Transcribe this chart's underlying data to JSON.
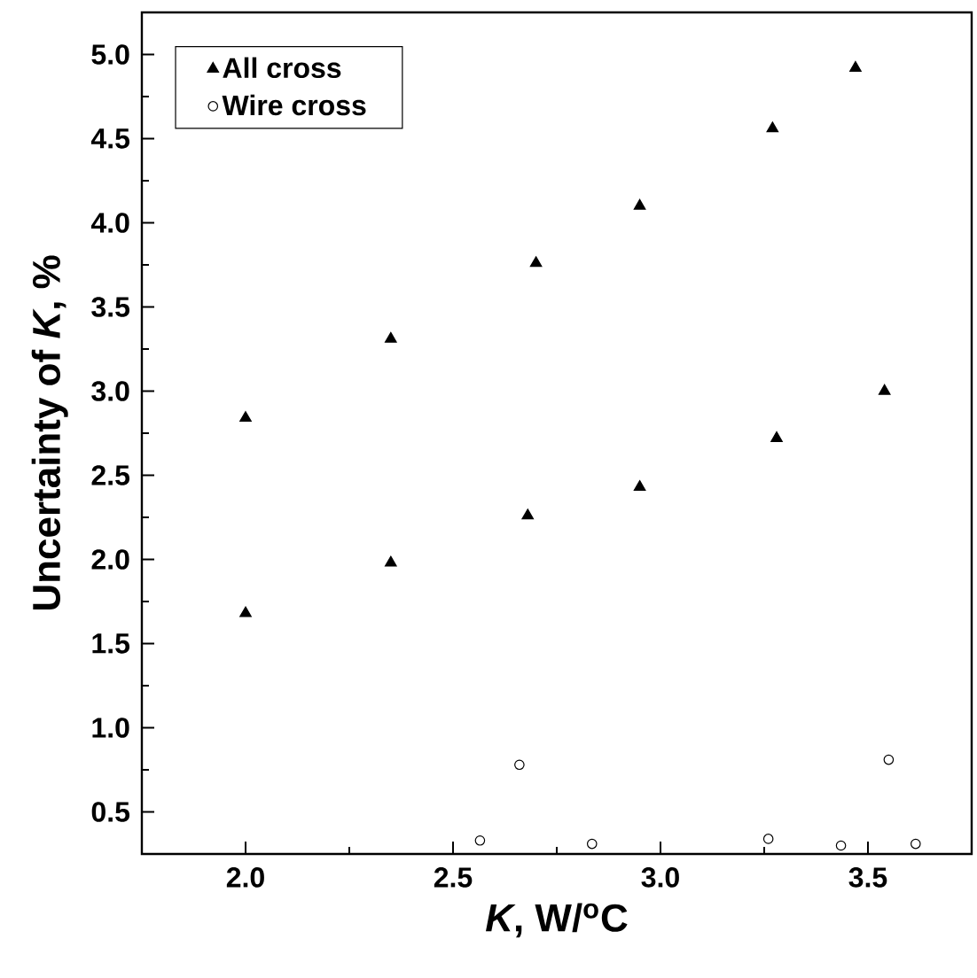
{
  "chart_data": {
    "type": "scatter",
    "xlabel": "*K*, W/$^{o}$C",
    "ylabel": "Uncertainty of *K*, %",
    "series": [
      {
        "name": "All cross",
        "color": "#000000",
        "marker": "triangle",
        "x": [
          2.0,
          2.35,
          2.7,
          2.95,
          3.27,
          3.47,
          3.54,
          3.28,
          2.95,
          2.0,
          2.35,
          2.68
        ],
        "values": [
          2.84,
          3.31,
          3.76,
          4.1,
          4.56,
          4.92,
          3.0,
          2.72,
          2.43,
          1.68,
          1.98,
          2.26
        ]
      },
      {
        "name": "Wire cross",
        "color": "#000000",
        "marker": "circle",
        "x": [
          2.565,
          2.66,
          2.835,
          3.26,
          3.435,
          3.55,
          3.615
        ],
        "values": [
          0.33,
          0.78,
          0.31,
          0.34,
          0.3,
          0.81,
          0.31
        ]
      }
    ],
    "xlim": [
      1.75,
      3.75
    ],
    "ylim": [
      0.25,
      5.25
    ],
    "xticks": [
      {
        "value": 2,
        "label": "2.0"
      },
      {
        "value": 2.25,
        "label": null
      },
      {
        "value": 2.5,
        "label": "2.5"
      },
      {
        "value": 2.75,
        "label": null
      },
      {
        "value": 3,
        "label": "3.0"
      },
      {
        "value": 3.25,
        "label": null
      },
      {
        "value": 3.5,
        "label": "3.5"
      }
    ],
    "yticks": [
      {
        "value": 0.5,
        "label": "0.5"
      },
      {
        "value": 0.75,
        "label": null
      },
      {
        "value": 1,
        "label": "1.0"
      },
      {
        "value": 1.25,
        "label": null
      },
      {
        "value": 1.5,
        "label": "1.5"
      },
      {
        "value": 1.75,
        "label": null
      },
      {
        "value": 2,
        "label": "2.0"
      },
      {
        "value": 2.25,
        "label": null
      },
      {
        "value": 2.5,
        "label": "2.5"
      },
      {
        "value": 2.75,
        "label": null
      },
      {
        "value": 3,
        "label": "3.0"
      },
      {
        "value": 3.25,
        "label": null
      },
      {
        "value": 3.5,
        "label": "3.5"
      },
      {
        "value": 3.75,
        "label": null
      },
      {
        "value": 4,
        "label": "4.0"
      },
      {
        "value": 4.25,
        "label": null
      },
      {
        "value": 4.5,
        "label": "4.5"
      },
      {
        "value": 4.75,
        "label": null
      },
      {
        "value": 5,
        "label": "5.0"
      },
      {
        "value": 5.25,
        "label": null
      }
    ],
    "legend": "top left"
  }
}
